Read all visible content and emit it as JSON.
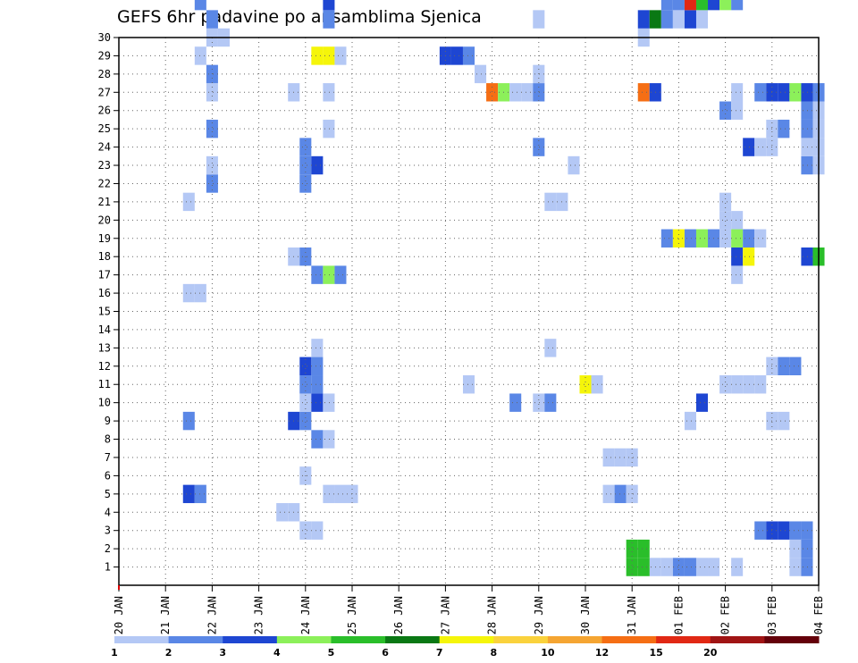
{
  "chart_data": {
    "type": "heatmap",
    "title": "GEFS 6hr padavine po ansamblima Sjenica",
    "xlabel": "",
    "ylabel": "",
    "y_ticks": [
      1,
      2,
      3,
      4,
      5,
      6,
      7,
      8,
      9,
      10,
      11,
      12,
      13,
      14,
      15,
      16,
      17,
      18,
      19,
      20,
      21,
      22,
      23,
      24,
      25,
      26,
      27,
      28,
      29,
      30
    ],
    "x_tick_labels": [
      "20 JAN",
      "21 JAN",
      "22 JAN",
      "23 JAN",
      "24 JAN",
      "25 JAN",
      "26 JAN",
      "27 JAN",
      "28 JAN",
      "29 JAN",
      "30 JAN",
      "31 JAN",
      "01 FEB",
      "02 FEB",
      "03 FEB",
      "04 FEB"
    ],
    "x_unit": "6h steps since 20 JAN 00z",
    "xlim": [
      0,
      60
    ],
    "ylim": [
      0,
      30
    ],
    "grid": true,
    "colorbar": {
      "labels": [
        "1",
        "2",
        "3",
        "4",
        "5",
        "6",
        "7",
        "8",
        "10",
        "12",
        "15",
        "20"
      ],
      "colors": [
        "#b4c8f5",
        "#5a87e6",
        "#1e46d2",
        "#8cf05a",
        "#2abe2a",
        "#0a7814",
        "#f5f50a",
        "#fad23c",
        "#f5a532",
        "#f56e14",
        "#e12814",
        "#a01414",
        "#64000a"
      ]
    },
    "cells": [
      {
        "m": 1,
        "t": 46,
        "c": 0
      },
      {
        "m": 1,
        "t": 47,
        "c": 0
      },
      {
        "m": 1,
        "t": 48,
        "c": 1
      },
      {
        "m": 1,
        "t": 49,
        "c": 1
      },
      {
        "m": 1,
        "t": 50,
        "c": 0
      },
      {
        "m": 1,
        "t": 51,
        "c": 0
      },
      {
        "m": 1,
        "t": 44,
        "c": 4
      },
      {
        "m": 1,
        "t": 45,
        "c": 4
      },
      {
        "m": 1,
        "t": 53,
        "c": 0
      },
      {
        "m": 1,
        "t": 58,
        "c": 0
      },
      {
        "m": 1,
        "t": 59,
        "c": 1
      },
      {
        "m": 2,
        "t": 44,
        "c": 4
      },
      {
        "m": 2,
        "t": 45,
        "c": 4
      },
      {
        "m": 2,
        "t": 58,
        "c": 0
      },
      {
        "m": 2,
        "t": 59,
        "c": 1
      },
      {
        "m": 3,
        "t": 16,
        "c": 0
      },
      {
        "m": 3,
        "t": 17,
        "c": 0
      },
      {
        "m": 3,
        "t": 55,
        "c": 1
      },
      {
        "m": 3,
        "t": 56,
        "c": 2
      },
      {
        "m": 3,
        "t": 57,
        "c": 2
      },
      {
        "m": 3,
        "t": 58,
        "c": 1
      },
      {
        "m": 3,
        "t": 59,
        "c": 1
      },
      {
        "m": 4,
        "t": 14,
        "c": 0
      },
      {
        "m": 4,
        "t": 15,
        "c": 0
      },
      {
        "m": 5,
        "t": 6,
        "c": 2
      },
      {
        "m": 5,
        "t": 7,
        "c": 1
      },
      {
        "m": 5,
        "t": 18,
        "c": 0
      },
      {
        "m": 5,
        "t": 19,
        "c": 0
      },
      {
        "m": 5,
        "t": 20,
        "c": 0
      },
      {
        "m": 5,
        "t": 42,
        "c": 0
      },
      {
        "m": 5,
        "t": 43,
        "c": 1
      },
      {
        "m": 5,
        "t": 44,
        "c": 0
      },
      {
        "m": 6,
        "t": 16,
        "c": 0
      },
      {
        "m": 7,
        "t": 42,
        "c": 0
      },
      {
        "m": 7,
        "t": 43,
        "c": 0
      },
      {
        "m": 7,
        "t": 44,
        "c": 0
      },
      {
        "m": 8,
        "t": 17,
        "c": 1
      },
      {
        "m": 8,
        "t": 18,
        "c": 0
      },
      {
        "m": 9,
        "t": 6,
        "c": 1
      },
      {
        "m": 9,
        "t": 15,
        "c": 2
      },
      {
        "m": 9,
        "t": 16,
        "c": 1
      },
      {
        "m": 9,
        "t": 49,
        "c": 0
      },
      {
        "m": 9,
        "t": 56,
        "c": 0
      },
      {
        "m": 9,
        "t": 57,
        "c": 0
      },
      {
        "m": 10,
        "t": 16,
        "c": 0
      },
      {
        "m": 10,
        "t": 17,
        "c": 2
      },
      {
        "m": 10,
        "t": 18,
        "c": 0
      },
      {
        "m": 10,
        "t": 34,
        "c": 1
      },
      {
        "m": 10,
        "t": 36,
        "c": 0
      },
      {
        "m": 10,
        "t": 37,
        "c": 1
      },
      {
        "m": 10,
        "t": 50,
        "c": 2
      },
      {
        "m": 11,
        "t": 16,
        "c": 1
      },
      {
        "m": 11,
        "t": 17,
        "c": 1
      },
      {
        "m": 11,
        "t": 30,
        "c": 0
      },
      {
        "m": 11,
        "t": 40,
        "c": 6
      },
      {
        "m": 11,
        "t": 41,
        "c": 0
      },
      {
        "m": 11,
        "t": 52,
        "c": 0
      },
      {
        "m": 11,
        "t": 53,
        "c": 0
      },
      {
        "m": 11,
        "t": 54,
        "c": 0
      },
      {
        "m": 11,
        "t": 55,
        "c": 0
      },
      {
        "m": 12,
        "t": 16,
        "c": 2
      },
      {
        "m": 12,
        "t": 17,
        "c": 1
      },
      {
        "m": 12,
        "t": 56,
        "c": 0
      },
      {
        "m": 12,
        "t": 57,
        "c": 1
      },
      {
        "m": 12,
        "t": 58,
        "c": 1
      },
      {
        "m": 13,
        "t": 17,
        "c": 0
      },
      {
        "m": 13,
        "t": 37,
        "c": 0
      },
      {
        "m": 16,
        "t": 6,
        "c": 0
      },
      {
        "m": 16,
        "t": 7,
        "c": 0
      },
      {
        "m": 17,
        "t": 17,
        "c": 1
      },
      {
        "m": 17,
        "t": 18,
        "c": 3
      },
      {
        "m": 17,
        "t": 19,
        "c": 1
      },
      {
        "m": 17,
        "t": 53,
        "c": 0
      },
      {
        "m": 18,
        "t": 15,
        "c": 0
      },
      {
        "m": 18,
        "t": 16,
        "c": 1
      },
      {
        "m": 18,
        "t": 53,
        "c": 2
      },
      {
        "m": 18,
        "t": 54,
        "c": 6
      },
      {
        "m": 18,
        "t": 59,
        "c": 2
      },
      {
        "m": 18,
        "t": 60,
        "c": 4
      },
      {
        "m": 19,
        "t": 47,
        "c": 1
      },
      {
        "m": 19,
        "t": 48,
        "c": 6
      },
      {
        "m": 19,
        "t": 49,
        "c": 1
      },
      {
        "m": 19,
        "t": 50,
        "c": 3
      },
      {
        "m": 19,
        "t": 51,
        "c": 1
      },
      {
        "m": 19,
        "t": 52,
        "c": 0
      },
      {
        "m": 19,
        "t": 53,
        "c": 3
      },
      {
        "m": 19,
        "t": 54,
        "c": 1
      },
      {
        "m": 19,
        "t": 55,
        "c": 0
      },
      {
        "m": 20,
        "t": 52,
        "c": 0
      },
      {
        "m": 20,
        "t": 53,
        "c": 0
      },
      {
        "m": 21,
        "t": 6,
        "c": 0
      },
      {
        "m": 21,
        "t": 37,
        "c": 0
      },
      {
        "m": 21,
        "t": 38,
        "c": 0
      },
      {
        "m": 21,
        "t": 52,
        "c": 0
      },
      {
        "m": 22,
        "t": 16,
        "c": 1
      },
      {
        "m": 22,
        "t": 8,
        "c": 1
      },
      {
        "m": 23,
        "t": 8,
        "c": 0
      },
      {
        "m": 23,
        "t": 16,
        "c": 1
      },
      {
        "m": 23,
        "t": 17,
        "c": 2
      },
      {
        "m": 23,
        "t": 39,
        "c": 0
      },
      {
        "m": 23,
        "t": 59,
        "c": 1
      },
      {
        "m": 23,
        "t": 60,
        "c": 0
      },
      {
        "m": 24,
        "t": 16,
        "c": 1
      },
      {
        "m": 24,
        "t": 36,
        "c": 1
      },
      {
        "m": 24,
        "t": 54,
        "c": 2
      },
      {
        "m": 24,
        "t": 55,
        "c": 0
      },
      {
        "m": 24,
        "t": 56,
        "c": 0
      },
      {
        "m": 24,
        "t": 59,
        "c": 0
      },
      {
        "m": 24,
        "t": 60,
        "c": 0
      },
      {
        "m": 25,
        "t": 8,
        "c": 1
      },
      {
        "m": 25,
        "t": 18,
        "c": 0
      },
      {
        "m": 25,
        "t": 56,
        "c": 0
      },
      {
        "m": 25,
        "t": 57,
        "c": 1
      },
      {
        "m": 25,
        "t": 59,
        "c": 1
      },
      {
        "m": 25,
        "t": 60,
        "c": 0
      },
      {
        "m": 26,
        "t": 52,
        "c": 1
      },
      {
        "m": 26,
        "t": 53,
        "c": 0
      },
      {
        "m": 26,
        "t": 59,
        "c": 1
      },
      {
        "m": 26,
        "t": 60,
        "c": 0
      },
      {
        "m": 27,
        "t": 8,
        "c": 0
      },
      {
        "m": 27,
        "t": 15,
        "c": 0
      },
      {
        "m": 27,
        "t": 18,
        "c": 0
      },
      {
        "m": 27,
        "t": 32,
        "c": 9
      },
      {
        "m": 27,
        "t": 33,
        "c": 3
      },
      {
        "m": 27,
        "t": 34,
        "c": 0
      },
      {
        "m": 27,
        "t": 35,
        "c": 0
      },
      {
        "m": 27,
        "t": 36,
        "c": 1
      },
      {
        "m": 27,
        "t": 45,
        "c": 9
      },
      {
        "m": 27,
        "t": 46,
        "c": 2
      },
      {
        "m": 27,
        "t": 53,
        "c": 0
      },
      {
        "m": 27,
        "t": 55,
        "c": 1
      },
      {
        "m": 27,
        "t": 56,
        "c": 2
      },
      {
        "m": 27,
        "t": 57,
        "c": 2
      },
      {
        "m": 27,
        "t": 58,
        "c": 3
      },
      {
        "m": 27,
        "t": 59,
        "c": 2
      },
      {
        "m": 27,
        "t": 60,
        "c": 1
      },
      {
        "m": 28,
        "t": 8,
        "c": 1
      },
      {
        "m": 28,
        "t": 31,
        "c": 0
      },
      {
        "m": 28,
        "t": 36,
        "c": 0
      },
      {
        "m": 29,
        "t": 7,
        "c": 0
      },
      {
        "m": 29,
        "t": 17,
        "c": 6
      },
      {
        "m": 29,
        "t": 18,
        "c": 6
      },
      {
        "m": 29,
        "t": 19,
        "c": 0
      },
      {
        "m": 29,
        "t": 28,
        "c": 2
      },
      {
        "m": 29,
        "t": 29,
        "c": 2
      },
      {
        "m": 29,
        "t": 30,
        "c": 1
      },
      {
        "m": 30,
        "t": 8,
        "c": 0
      },
      {
        "m": 30,
        "t": 9,
        "c": 0
      },
      {
        "m": 30,
        "t": 45,
        "c": 0
      },
      {
        "m": 31,
        "t": 8,
        "c": 1
      },
      {
        "m": 31,
        "t": 18,
        "c": 1
      },
      {
        "m": 31,
        "t": 36,
        "c": 0
      },
      {
        "m": 31,
        "t": 45,
        "c": 2
      },
      {
        "m": 31,
        "t": 46,
        "c": 5
      },
      {
        "m": 31,
        "t": 47,
        "c": 1
      },
      {
        "m": 31,
        "t": 48,
        "c": 0
      },
      {
        "m": 31,
        "t": 49,
        "c": 2
      },
      {
        "m": 31,
        "t": 50,
        "c": 0
      },
      {
        "m": 32,
        "t": 7,
        "c": 1
      },
      {
        "m": 32,
        "t": 18,
        "c": 2
      },
      {
        "m": 32,
        "t": 47,
        "c": 1
      },
      {
        "m": 32,
        "t": 48,
        "c": 1
      },
      {
        "m": 32,
        "t": 49,
        "c": 10
      },
      {
        "m": 32,
        "t": 50,
        "c": 4
      },
      {
        "m": 32,
        "t": 51,
        "c": 2
      },
      {
        "m": 32,
        "t": 52,
        "c": 3
      },
      {
        "m": 32,
        "t": 53,
        "c": 1
      }
    ]
  }
}
